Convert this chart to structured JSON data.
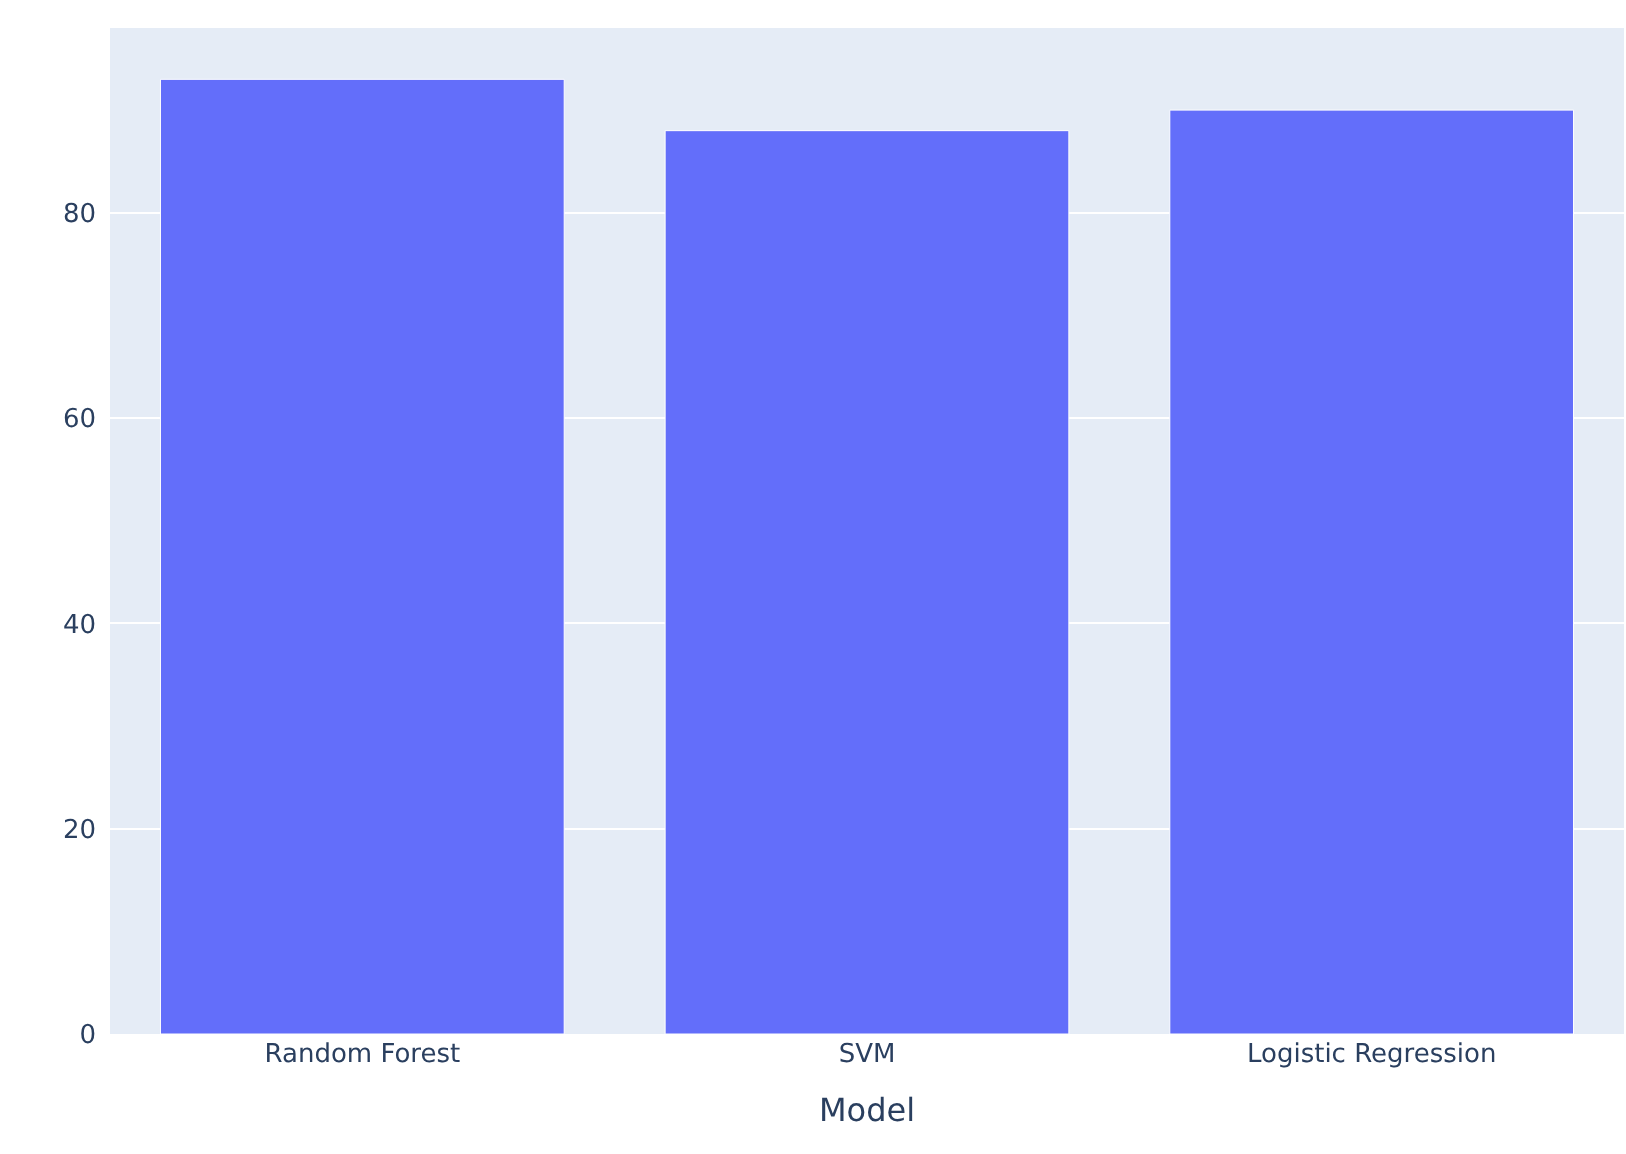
{
  "chart_data": {
    "type": "bar",
    "xlabel": "Model",
    "categories": [
      "Random Forest",
      "SVM",
      "Logistic Regression"
    ],
    "values": [
      93,
      88,
      90
    ],
    "color": "#636efa",
    "ylim": [
      0,
      98
    ],
    "yticks": [
      0,
      20,
      40,
      60,
      80
    ],
    "grid": "y",
    "legend": false
  }
}
